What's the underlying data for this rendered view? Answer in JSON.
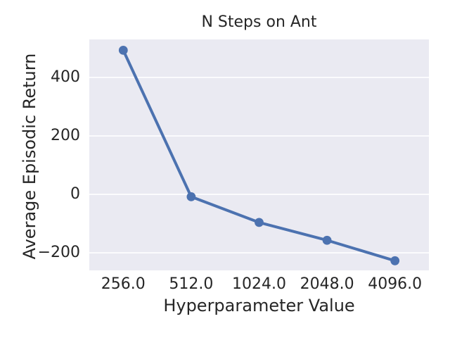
{
  "figure": {
    "background_color": "#ffffff",
    "plot_background_color": "#eaeaf2",
    "grid_color": "#ffffff",
    "text_color": "#262626"
  },
  "chart_data": {
    "type": "line",
    "title": "N Steps on Ant",
    "xlabel": "Hyperparameter Value",
    "ylabel": "Average Episodic Return",
    "x": [
      256.0,
      512.0,
      1024.0,
      2048.0,
      4096.0
    ],
    "x_tick_labels": [
      "256.0",
      "512.0",
      "1024.0",
      "2048.0",
      "4096.0"
    ],
    "x_scale": "log2, points evenly spaced",
    "values": [
      493,
      -8,
      -96,
      -157,
      -227
    ],
    "line_color": "#4c72b0",
    "marker": "circle",
    "y_ticks": [
      400,
      200,
      0,
      -200
    ],
    "y_tick_labels": [
      "400",
      "200",
      "0",
      "−200"
    ],
    "ylim": [
      -260,
      530
    ],
    "grid": "horizontal-only",
    "legend": "none"
  }
}
